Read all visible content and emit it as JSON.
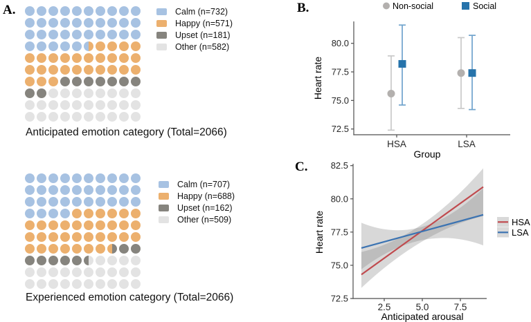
{
  "colors": {
    "calm": "#a7c2e2",
    "happy": "#ecb06e",
    "upset": "#86847e",
    "other": "#e3e3e3",
    "social": "#2673ab",
    "social_whisker": "#6fa3cc",
    "nonsocial": "#b3b0ae",
    "nonsocial_whisker": "#c9c9c9",
    "hsa": "#c04a4e",
    "lsa": "#3b73b2",
    "ribbon": "rgba(127,127,127,0.30)",
    "legend_key_bg": "#d9d9d9",
    "axis": "#4d4d4d"
  },
  "panels": {
    "a": {
      "label": "A.",
      "charts": [
        {
          "caption": "Anticipated emotion category (Total=2066)",
          "legend": [
            {
              "label": "Calm (n=732)",
              "color_key": "calm"
            },
            {
              "label": "Happy (n=571)",
              "color_key": "happy"
            },
            {
              "label": "Upset (n=181)",
              "color_key": "upset"
            },
            {
              "label": "Other (n=582)",
              "color_key": "other"
            }
          ],
          "grid": [
            [
              "C",
              "C",
              "C",
              "C",
              "C",
              "C",
              "C",
              "C",
              "C",
              "C"
            ],
            [
              "C",
              "C",
              "C",
              "C",
              "C",
              "C",
              "C",
              "C",
              "C",
              "C"
            ],
            [
              "C",
              "C",
              "C",
              "C",
              "C",
              "C",
              "C",
              "C",
              "C",
              "C"
            ],
            [
              "C",
              "C",
              "C",
              "C",
              "C",
              "C|H",
              "H",
              "H",
              "H",
              "H"
            ],
            [
              "H",
              "H",
              "H",
              "H",
              "H",
              "H",
              "H",
              "H",
              "H",
              "H"
            ],
            [
              "H",
              "H",
              "H",
              "H",
              "H",
              "H",
              "H",
              "H",
              "H",
              "H"
            ],
            [
              "H",
              "H",
              "H",
              "U",
              "U",
              "U",
              "U",
              "U",
              "U",
              "U"
            ],
            [
              "U",
              "U",
              "O",
              "O",
              "O",
              "O",
              "O",
              "O",
              "O",
              "O"
            ],
            [
              "O",
              "O",
              "O",
              "O",
              "O",
              "O",
              "O",
              "O",
              "O",
              "O"
            ],
            [
              "O",
              "O",
              "O",
              "O",
              "O",
              "O",
              "O",
              "O",
              "O",
              "O"
            ]
          ]
        },
        {
          "caption": "Experienced emotion category (Total=2066)",
          "legend": [
            {
              "label": "Calm (n=707)",
              "color_key": "calm"
            },
            {
              "label": "Happy (n=688)",
              "color_key": "happy"
            },
            {
              "label": "Upset (n=162)",
              "color_key": "upset"
            },
            {
              "label": "Other (n=509)",
              "color_key": "other"
            }
          ],
          "grid": [
            [
              "C",
              "C",
              "C",
              "C",
              "C",
              "C",
              "C",
              "C",
              "C",
              "C"
            ],
            [
              "C",
              "C",
              "C",
              "C",
              "C",
              "C",
              "C",
              "C",
              "C",
              "C"
            ],
            [
              "C",
              "C",
              "C",
              "C",
              "C",
              "C",
              "C",
              "C",
              "C",
              "C"
            ],
            [
              "C",
              "C",
              "C",
              "C",
              "H",
              "H",
              "H",
              "H",
              "H",
              "H"
            ],
            [
              "H",
              "H",
              "H",
              "H",
              "H",
              "H",
              "H",
              "H",
              "H",
              "H"
            ],
            [
              "H",
              "H",
              "H",
              "H",
              "H",
              "H",
              "H",
              "H",
              "H",
              "H"
            ],
            [
              "H",
              "H",
              "H",
              "H",
              "H",
              "H",
              "H",
              "H|U",
              "U",
              "U"
            ],
            [
              "U",
              "U",
              "U",
              "U",
              "U",
              "U|O",
              "O",
              "O",
              "O",
              "O"
            ],
            [
              "O",
              "O",
              "O",
              "O",
              "O",
              "O",
              "O",
              "O",
              "O",
              "O"
            ],
            [
              "O",
              "O",
              "O",
              "O",
              "O",
              "O",
              "O",
              "O",
              "O",
              "O"
            ]
          ]
        }
      ]
    },
    "b": {
      "label": "B."
    },
    "c": {
      "label": "C."
    }
  },
  "chart_data": [
    {
      "panel": "A-top",
      "type": "waffle",
      "title": "Anticipated emotion category (Total=2066)",
      "total": 2066,
      "categories": [
        "Calm",
        "Happy",
        "Upset",
        "Other"
      ],
      "values": [
        732,
        571,
        181,
        582
      ]
    },
    {
      "panel": "A-bottom",
      "type": "waffle",
      "title": "Experienced emotion category (Total=2066)",
      "total": 2066,
      "categories": [
        "Calm",
        "Happy",
        "Upset",
        "Other"
      ],
      "values": [
        707,
        688,
        162,
        509
      ]
    },
    {
      "panel": "B",
      "type": "pointrange",
      "xlabel": "Group",
      "ylabel": "Heart rate",
      "categories": [
        "HSA",
        "LSA"
      ],
      "yticks": [
        72.5,
        75.0,
        77.5,
        80.0
      ],
      "ylim": [
        72.2,
        82.0
      ],
      "legend_position": "top",
      "series": [
        {
          "name": "Non-social",
          "marker": "circle",
          "means": [
            75.6,
            77.4
          ],
          "lower": [
            72.4,
            74.3
          ],
          "upper": [
            78.9,
            80.5
          ]
        },
        {
          "name": "Social",
          "marker": "square",
          "means": [
            78.2,
            77.4
          ],
          "lower": [
            74.6,
            74.2
          ],
          "upper": [
            81.6,
            80.7
          ]
        }
      ]
    },
    {
      "panel": "C",
      "type": "line",
      "xlabel": "Anticipated arousal",
      "ylabel": "Heart rate",
      "xticks": [
        2.5,
        5.0,
        7.5
      ],
      "yticks": [
        72.5,
        75.0,
        77.5,
        80.0,
        82.5
      ],
      "xlim": [
        1.0,
        9.2
      ],
      "ylim": [
        72.5,
        82.5
      ],
      "legend_position": "right",
      "grid": "off",
      "series": [
        {
          "name": "HSA",
          "x": [
            1.0,
            9.0
          ],
          "y": [
            74.3,
            80.9
          ],
          "band_x": [
            1.0,
            5.0,
            9.0
          ],
          "band_lower": [
            73.3,
            76.8,
            78.7
          ],
          "band_upper": [
            76.0,
            78.1,
            82.3
          ]
        },
        {
          "name": "LSA",
          "x": [
            1.0,
            9.0
          ],
          "y": [
            76.3,
            78.8
          ],
          "band_x": [
            1.0,
            5.0,
            9.0
          ],
          "band_lower": [
            74.7,
            76.9,
            76.5
          ],
          "band_upper": [
            78.2,
            77.9,
            80.8
          ]
        }
      ]
    }
  ]
}
